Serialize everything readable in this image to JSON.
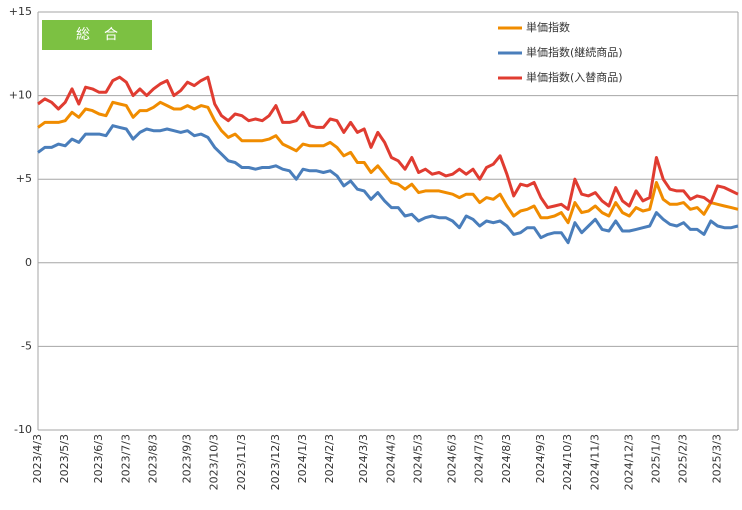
{
  "chart_data": {
    "type": "line",
    "title": "総　合",
    "categories": [
      "2023/4/3",
      null,
      null,
      null,
      "2023/5/3",
      null,
      null,
      null,
      null,
      "2023/6/3",
      null,
      null,
      null,
      "2023/7/3",
      null,
      null,
      null,
      "2023/8/3",
      null,
      null,
      null,
      null,
      "2023/9/3",
      null,
      null,
      null,
      "2023/10/3",
      null,
      null,
      null,
      "2023/11/3",
      null,
      null,
      null,
      null,
      "2023/12/3",
      null,
      null,
      null,
      "2024/1/3",
      null,
      null,
      null,
      "2024/2/3",
      null,
      null,
      null,
      null,
      "2024/3/3",
      null,
      null,
      null,
      "2024/4/3",
      null,
      null,
      null,
      "2024/5/3",
      null,
      null,
      null,
      null,
      "2024/6/3",
      null,
      null,
      null,
      "2024/7/3",
      null,
      null,
      null,
      "2024/8/3",
      null,
      null,
      null,
      null,
      "2024/9/3",
      null,
      null,
      null,
      "2024/10/3",
      null,
      null,
      null,
      "2024/11/3",
      null,
      null,
      null,
      null,
      "2024/12/3",
      null,
      null,
      null,
      "2025/1/3",
      null,
      null,
      null,
      "2025/2/3",
      null,
      null,
      null,
      null,
      "2025/3/3",
      null,
      null,
      null
    ],
    "series": [
      {
        "name": "単価指数",
        "color": "#f08c00",
        "values": [
          8.1,
          8.4,
          8.4,
          8.4,
          8.5,
          9.0,
          8.7,
          9.2,
          9.1,
          8.9,
          8.8,
          9.6,
          9.5,
          9.4,
          8.7,
          9.1,
          9.1,
          9.3,
          9.6,
          9.4,
          9.2,
          9.2,
          9.4,
          9.2,
          9.4,
          9.3,
          8.5,
          7.9,
          7.5,
          7.7,
          7.3,
          7.3,
          7.3,
          7.3,
          7.4,
          7.6,
          7.1,
          6.9,
          6.7,
          7.1,
          7.0,
          7.0,
          7.0,
          7.2,
          6.9,
          6.4,
          6.6,
          6.0,
          6.0,
          5.4,
          5.8,
          5.3,
          4.8,
          4.7,
          4.4,
          4.7,
          4.2,
          4.3,
          4.3,
          4.3,
          4.2,
          4.1,
          3.9,
          4.1,
          4.1,
          3.6,
          3.9,
          3.8,
          4.1,
          3.4,
          2.8,
          3.1,
          3.2,
          3.4,
          2.7,
          2.7,
          2.8,
          3.0,
          2.4,
          3.6,
          3.0,
          3.1,
          3.4,
          3.0,
          2.8,
          3.6,
          3.0,
          2.8,
          3.3,
          3.1,
          3.2,
          4.8,
          3.8,
          3.5,
          3.5,
          3.6,
          3.2,
          3.3,
          2.9,
          3.6,
          3.5,
          3.4,
          3.3,
          3.2
        ]
      },
      {
        "name": "単価指数(継続商品)",
        "color": "#4a7ebb",
        "values": [
          6.6,
          6.9,
          6.9,
          7.1,
          7.0,
          7.4,
          7.2,
          7.7,
          7.7,
          7.7,
          7.6,
          8.2,
          8.1,
          8.0,
          7.4,
          7.8,
          8.0,
          7.9,
          7.9,
          8.0,
          7.9,
          7.8,
          7.9,
          7.6,
          7.7,
          7.5,
          6.9,
          6.5,
          6.1,
          6.0,
          5.7,
          5.7,
          5.6,
          5.7,
          5.7,
          5.8,
          5.6,
          5.5,
          5.0,
          5.6,
          5.5,
          5.5,
          5.4,
          5.5,
          5.2,
          4.6,
          4.9,
          4.4,
          4.3,
          3.8,
          4.2,
          3.7,
          3.3,
          3.3,
          2.8,
          2.9,
          2.5,
          2.7,
          2.8,
          2.7,
          2.7,
          2.5,
          2.1,
          2.8,
          2.6,
          2.2,
          2.5,
          2.4,
          2.5,
          2.2,
          1.7,
          1.8,
          2.1,
          2.1,
          1.5,
          1.7,
          1.8,
          1.8,
          1.2,
          2.4,
          1.8,
          2.2,
          2.6,
          2.0,
          1.9,
          2.5,
          1.9,
          1.9,
          2.0,
          2.1,
          2.2,
          3.0,
          2.6,
          2.3,
          2.2,
          2.4,
          2.0,
          2.0,
          1.7,
          2.5,
          2.2,
          2.1,
          2.1,
          2.2
        ]
      },
      {
        "name": "単価指数(入替商品)",
        "color": "#e03c31",
        "values": [
          9.5,
          9.8,
          9.6,
          9.2,
          9.6,
          10.4,
          9.5,
          10.5,
          10.4,
          10.2,
          10.2,
          10.9,
          11.1,
          10.8,
          10.0,
          10.4,
          10.0,
          10.4,
          10.7,
          10.9,
          10.0,
          10.3,
          10.8,
          10.6,
          10.9,
          11.1,
          9.5,
          8.8,
          8.5,
          8.9,
          8.8,
          8.5,
          8.6,
          8.5,
          8.8,
          9.4,
          8.4,
          8.4,
          8.5,
          9.0,
          8.2,
          8.1,
          8.1,
          8.6,
          8.5,
          7.8,
          8.4,
          7.8,
          8.0,
          6.9,
          7.8,
          7.2,
          6.3,
          6.1,
          5.6,
          6.3,
          5.4,
          5.6,
          5.3,
          5.4,
          5.2,
          5.3,
          5.6,
          5.3,
          5.6,
          5.0,
          5.7,
          5.9,
          6.4,
          5.3,
          4.0,
          4.7,
          4.6,
          4.8,
          3.9,
          3.3,
          3.4,
          3.5,
          3.2,
          5.0,
          4.1,
          4.0,
          4.2,
          3.7,
          3.4,
          4.5,
          3.7,
          3.4,
          4.3,
          3.7,
          3.9,
          6.3,
          5.0,
          4.4,
          4.3,
          4.3,
          3.8,
          4.0,
          3.9,
          3.6,
          4.6,
          4.5,
          4.3,
          4.1
        ]
      }
    ],
    "ylim": [
      -10,
      15
    ],
    "yticks": [
      -10,
      -5,
      0,
      {
        "value": 5,
        "label": "+5"
      },
      {
        "value": 10,
        "label": "+10"
      },
      {
        "value": 15,
        "label": "+15"
      }
    ],
    "grid": true,
    "legend": "top-right"
  }
}
